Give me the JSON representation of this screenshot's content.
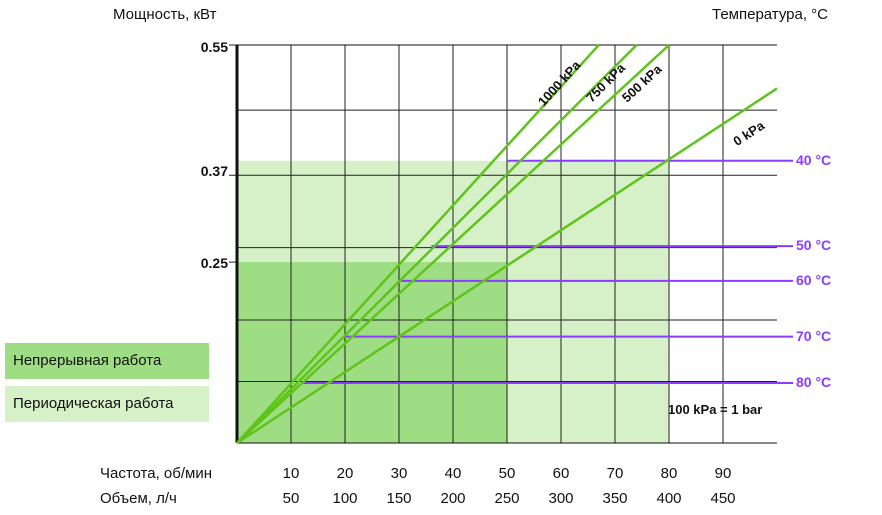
{
  "chart_data": {
    "type": "line",
    "title": "",
    "ylabel": "Мощность, кВт",
    "y2label": "Температура, °C",
    "xlabels": [
      "Частота, об/мин",
      "Объем, л/ч"
    ],
    "x_ticks_frequency": [
      "10",
      "20",
      "30",
      "40",
      "50",
      "60",
      "70",
      "80",
      "90"
    ],
    "x_ticks_volume": [
      "50",
      "100",
      "150",
      "200",
      "250",
      "300",
      "350",
      "400",
      "450"
    ],
    "xlim": [
      0,
      100
    ],
    "ylim": [
      0,
      0.55
    ],
    "y_ticks": [
      {
        "value": 0.55,
        "label": "0.55"
      },
      {
        "value": 0.37,
        "label": "0.37"
      },
      {
        "value": 0.25,
        "label": "0.25"
      }
    ],
    "grid": true,
    "series": [
      {
        "name": "1000 kPa",
        "x": [
          0,
          67
        ],
        "y": [
          0,
          0.55
        ]
      },
      {
        "name": "750 kPa",
        "x": [
          0,
          74
        ],
        "y": [
          0,
          0.55
        ]
      },
      {
        "name": "500 kPa",
        "x": [
          0,
          80
        ],
        "y": [
          0,
          0.55
        ]
      },
      {
        "name": "0 kPa",
        "x": [
          0,
          100
        ],
        "y": [
          0,
          0.49
        ]
      }
    ],
    "temperature_lines": [
      {
        "label": "40 °C",
        "y": 0.39,
        "x_start": 50
      },
      {
        "label": "50 °C",
        "y": 0.272,
        "x_start": 36
      },
      {
        "label": "60 °C",
        "y": 0.224,
        "x_start": 30
      },
      {
        "label": "70 °C",
        "y": 0.147,
        "x_start": 20
      },
      {
        "label": "80 °C",
        "y": 0.083,
        "x_start": 12
      }
    ],
    "regions": [
      {
        "name": "Непрерывная работа",
        "x": [
          0,
          50
        ],
        "y": [
          0,
          0.25
        ],
        "color": "#9edd83"
      },
      {
        "name": "Периодическая работа",
        "x": [
          0,
          80
        ],
        "y": [
          0,
          0.39
        ],
        "color": "#d6f0c8"
      }
    ],
    "annotation": "100 kPa = 1 bar",
    "colors": {
      "series": "#5fc41a",
      "temperature": "#8b3dff"
    }
  }
}
